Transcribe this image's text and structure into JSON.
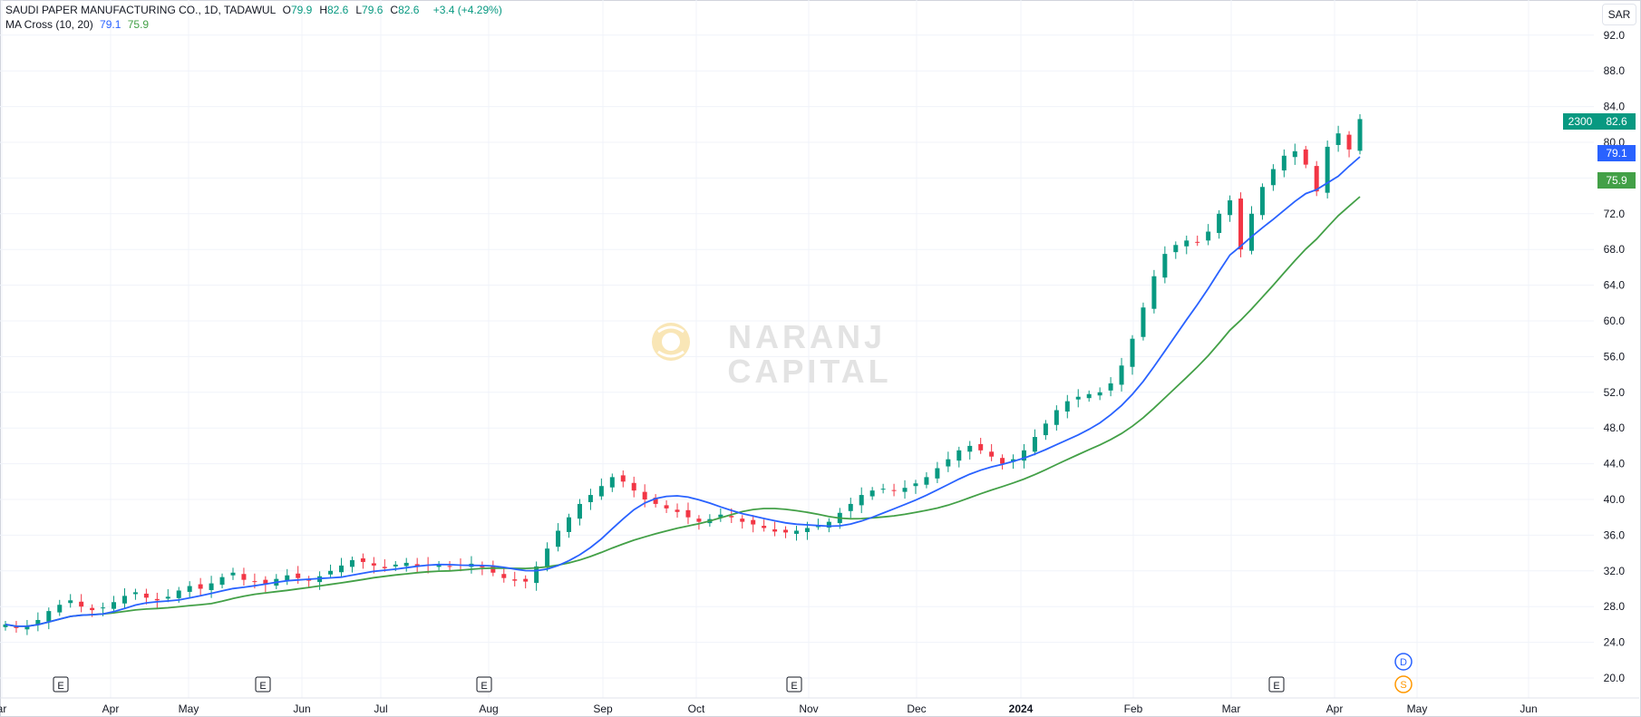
{
  "header": {
    "symbol_title": "SAUDI PAPER MANUFACTURING CO., 1D, TADAWUL",
    "ohlc": [
      {
        "key": "O",
        "value": "79.9"
      },
      {
        "key": "H",
        "value": "82.6"
      },
      {
        "key": "L",
        "value": "79.6"
      },
      {
        "key": "C",
        "value": "82.6"
      }
    ],
    "change": "+3.4 (+4.29%)",
    "indicator_label": "MA Cross (10, 20)",
    "ma_fast_value": "79.1",
    "ma_slow_value": "75.9"
  },
  "currency_label": "SAR",
  "watermark": {
    "line1": "NARANJ",
    "line2": "CAPITAL"
  },
  "price_tags": {
    "volume": "2300",
    "close": "82.6",
    "ma_fast": "79.1",
    "ma_slow": "75.9"
  },
  "colors": {
    "up": "#089981",
    "down": "#f23645",
    "ma_fast": "#2962ff",
    "ma_slow": "#43a047",
    "grid": "#f0f3fa",
    "axis_text": "#131722"
  },
  "chart_data": {
    "type": "candlestick",
    "yaxis_ticks": [
      "20.0",
      "24.0",
      "28.0",
      "32.0",
      "36.0",
      "40.0",
      "44.0",
      "48.0",
      "52.0",
      "56.0",
      "60.0",
      "64.0",
      "68.0",
      "72.0",
      "76.0",
      "80.0",
      "84.0",
      "88.0",
      "92.0"
    ],
    "ylim": [
      18.5,
      96.5
    ],
    "xaxis_labels": [
      "ar",
      "Apr",
      "May",
      "Jun",
      "Jul",
      "Aug",
      "Sep",
      "Oct",
      "Nov",
      "Dec",
      "2024",
      "Feb",
      "Mar",
      "Apr",
      "May",
      "Jun"
    ],
    "earnings_markers": [
      "E",
      "E",
      "E",
      "E",
      "E"
    ],
    "dividend_marker": "D",
    "split_marker": "S",
    "closes": [
      26.0,
      25.6,
      25.8,
      26.5,
      27.5,
      28.2,
      28.7,
      28.0,
      27.6,
      27.9,
      28.5,
      29.2,
      29.6,
      29.0,
      28.7,
      29.1,
      29.8,
      30.3,
      30.0,
      30.6,
      31.3,
      31.8,
      31.0,
      30.8,
      30.5,
      31.1,
      31.5,
      31.2,
      30.9,
      31.4,
      32.0,
      32.6,
      33.2,
      33.0,
      32.6,
      32.3,
      32.7,
      32.9,
      32.5,
      32.6,
      32.7,
      32.5,
      32.6,
      32.8,
      32.4,
      31.8,
      31.2,
      30.9,
      30.8,
      32.5,
      34.5,
      36.5,
      38.0,
      39.5,
      40.5,
      41.5,
      42.5,
      42.0,
      41.0,
      40.0,
      39.5,
      39.0,
      38.6,
      38.0,
      37.5,
      37.8,
      38.3,
      38.0,
      37.5,
      37.2,
      36.8,
      36.4,
      36.3,
      36.5,
      36.8,
      37.0,
      37.5,
      38.5,
      39.5,
      40.5,
      41.0,
      41.2,
      41.0,
      41.3,
      41.8,
      42.5,
      43.5,
      44.5,
      45.5,
      46.0,
      45.5,
      44.8,
      44.0,
      44.5,
      45.5,
      47.0,
      48.5,
      50.0,
      51.0,
      51.5,
      51.8,
      52.0,
      53.0,
      55.0,
      58.0,
      61.5,
      65.0,
      67.5,
      68.5,
      69.0,
      68.8,
      70.0,
      72.0,
      73.5,
      68.0,
      72.0,
      75.0,
      77.0,
      78.5,
      79.0,
      77.5,
      74.5,
      79.5,
      81.0,
      79.2,
      82.6
    ],
    "ma_fast": {
      "period": 10,
      "last": 79.1
    },
    "ma_slow": {
      "period": 20,
      "last": 75.9
    },
    "last_volume": 2300
  }
}
